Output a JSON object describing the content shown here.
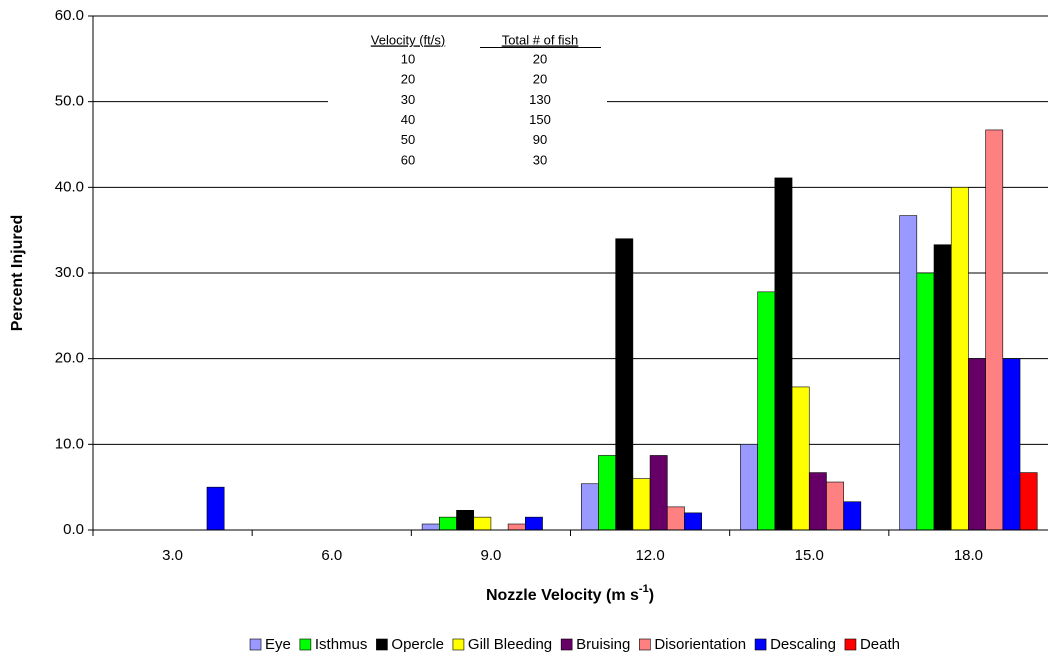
{
  "chart_data": {
    "type": "bar",
    "y_label": "Percent Injured",
    "x_label_parts": [
      "Nozzle Velocity (m s",
      "-1",
      ")"
    ],
    "categories": [
      "3.0",
      "6.0",
      "9.0",
      "12.0",
      "15.0",
      "18.0"
    ],
    "series": [
      {
        "name": "Eye",
        "color": "#9999ff",
        "values": [
          0,
          0,
          0.7,
          5.4,
          10.0,
          36.7
        ]
      },
      {
        "name": "Isthmus",
        "color": "#00ff00",
        "values": [
          0,
          0,
          1.5,
          8.7,
          27.8,
          30.0
        ]
      },
      {
        "name": "Opercle",
        "color": "#000000",
        "values": [
          0,
          0,
          2.3,
          34.0,
          41.1,
          33.3
        ]
      },
      {
        "name": "Gill Bleeding",
        "color": "#ffff00",
        "values": [
          0,
          0,
          1.5,
          6.0,
          16.7,
          40.0
        ]
      },
      {
        "name": "Bruising",
        "color": "#660066",
        "values": [
          0,
          0,
          0,
          8.7,
          6.7,
          20.0
        ]
      },
      {
        "name": "Disorientation",
        "color": "#ff8080",
        "values": [
          0,
          0,
          0.7,
          2.7,
          5.6,
          46.7
        ]
      },
      {
        "name": "Descaling",
        "color": "#0000ff",
        "values": [
          5.0,
          0,
          1.5,
          2.0,
          3.3,
          20.0
        ]
      },
      {
        "name": "Death",
        "color": "#ff0000",
        "values": [
          0,
          0,
          0,
          0,
          0,
          6.7
        ]
      }
    ],
    "ylim": [
      0,
      60
    ],
    "yticks": [
      {
        "value": 0,
        "label": "0.0"
      },
      {
        "value": 10,
        "label": "10.0"
      },
      {
        "value": 20,
        "label": "20.0"
      },
      {
        "value": 30,
        "label": "30.0"
      },
      {
        "value": 40,
        "label": "40.0"
      },
      {
        "value": 50,
        "label": "50.0"
      },
      {
        "value": 60,
        "label": "60.0"
      }
    ],
    "grid": true,
    "legend": "bottom",
    "inset_table": {
      "headers": [
        "Velocity (ft/s)",
        "Total # of fish"
      ],
      "rows": [
        [
          10,
          20
        ],
        [
          20,
          20
        ],
        [
          30,
          130
        ],
        [
          40,
          150
        ],
        [
          50,
          90
        ],
        [
          60,
          30
        ]
      ]
    }
  }
}
